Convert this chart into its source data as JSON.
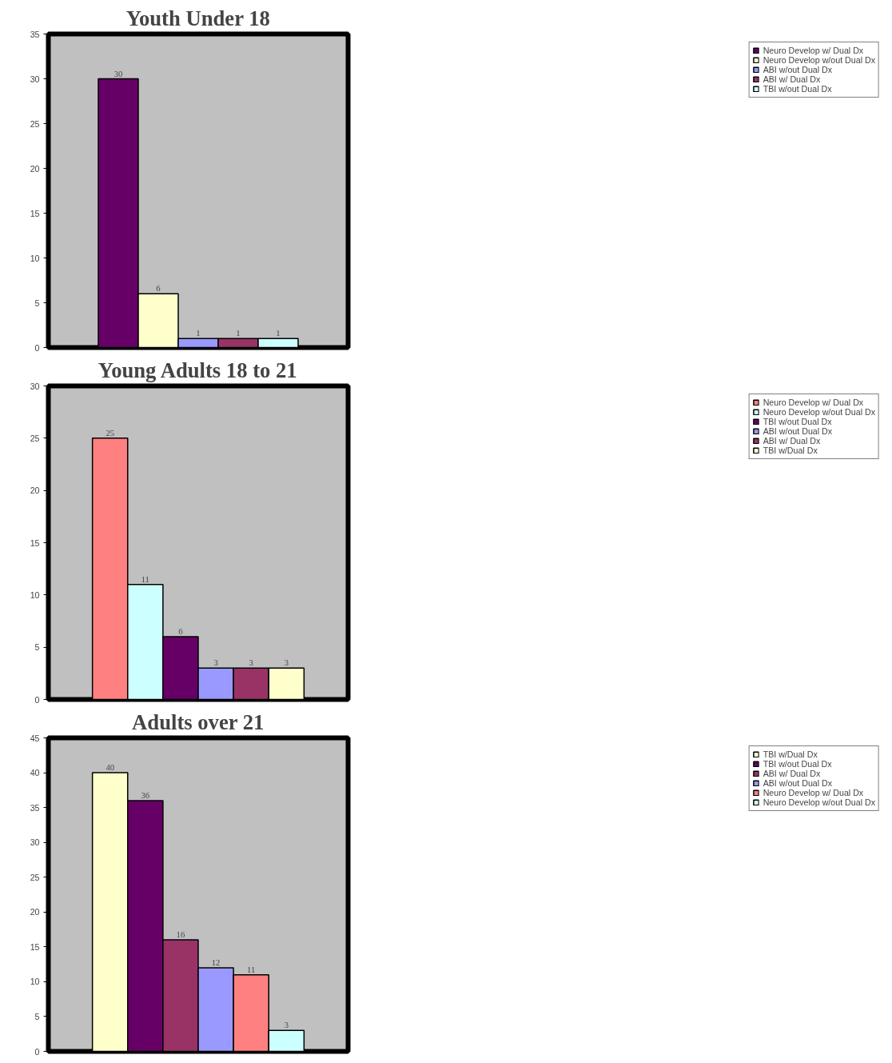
{
  "chart_data": [
    {
      "type": "bar",
      "title": "Youth Under 18",
      "categories": [
        null
      ],
      "ylim": [
        0,
        35
      ],
      "yticks": [
        0,
        5,
        10,
        15,
        20,
        25,
        30,
        35
      ],
      "grid": false,
      "legend": "right",
      "data_labels": true,
      "series": [
        {
          "name": "Neuro Develop w/ Dual Dx",
          "color": "#660066",
          "values": [
            30
          ]
        },
        {
          "name": "Neuro Develop w/out Dual Dx",
          "color": "#ffffcc",
          "values": [
            6
          ]
        },
        {
          "name": "ABI w/out Dual Dx",
          "color": "#9999ff",
          "values": [
            1
          ]
        },
        {
          "name": "ABI w/ Dual Dx",
          "color": "#993366",
          "values": [
            1
          ]
        },
        {
          "name": "TBI w/out Dual Dx",
          "color": "#ccffff",
          "values": [
            1
          ]
        }
      ]
    },
    {
      "type": "bar",
      "title": "Young Adults 18 to 21",
      "categories": [
        null
      ],
      "ylim": [
        0,
        30
      ],
      "yticks": [
        0,
        5,
        10,
        15,
        20,
        25,
        30
      ],
      "grid": false,
      "legend": "right",
      "data_labels": true,
      "series": [
        {
          "name": "Neuro Develop w/ Dual Dx",
          "color": "#ff8080",
          "values": [
            25
          ]
        },
        {
          "name": "Neuro Develop w/out Dual Dx",
          "color": "#ccffff",
          "values": [
            11
          ]
        },
        {
          "name": "TBI w/out Dual Dx",
          "color": "#660066",
          "values": [
            6
          ]
        },
        {
          "name": "ABI w/out Dual Dx",
          "color": "#9999ff",
          "values": [
            3
          ]
        },
        {
          "name": "ABI w/ Dual Dx",
          "color": "#993366",
          "values": [
            3
          ]
        },
        {
          "name": "TBI w/Dual Dx",
          "color": "#ffffcc",
          "values": [
            3
          ]
        }
      ]
    },
    {
      "type": "bar",
      "title": "Adults over 21",
      "categories": [
        null
      ],
      "ylim": [
        0,
        45
      ],
      "yticks": [
        0,
        5,
        10,
        15,
        20,
        25,
        30,
        35,
        40,
        45
      ],
      "grid": false,
      "legend": "right",
      "data_labels": true,
      "series": [
        {
          "name": "TBI w/Dual Dx",
          "color": "#ffffcc",
          "values": [
            40
          ]
        },
        {
          "name": "TBI w/out Dual Dx",
          "color": "#660066",
          "values": [
            36
          ]
        },
        {
          "name": "ABI w/ Dual Dx",
          "color": "#993366",
          "values": [
            16
          ]
        },
        {
          "name": "ABI w/out Dual Dx",
          "color": "#9999ff",
          "values": [
            12
          ]
        },
        {
          "name": "Neuro Develop w/ Dual Dx",
          "color": "#ff8080",
          "values": [
            11
          ]
        },
        {
          "name": "Neuro Develop w/out Dual Dx",
          "color": "#ccffff",
          "values": [
            3
          ]
        }
      ]
    }
  ]
}
